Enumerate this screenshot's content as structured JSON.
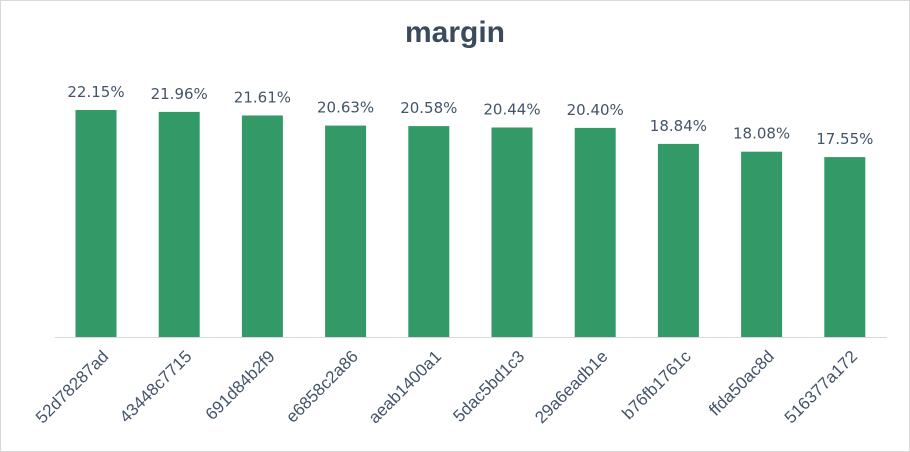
{
  "chart_data": {
    "type": "bar",
    "title": "margin",
    "categories": [
      "52d78287ad",
      "43448c7715",
      "691d84b2f9",
      "e6858c2a86",
      "aeab1400a1",
      "5dac5bd1c3",
      "29a6eadb1e",
      "b76fb1761c",
      "ffda50ac8d",
      "516377a172"
    ],
    "values": [
      22.15,
      21.96,
      21.61,
      20.63,
      20.58,
      20.44,
      20.4,
      18.84,
      18.08,
      17.55
    ],
    "value_labels": [
      "22.15%",
      "21.96%",
      "21.61%",
      "20.63%",
      "20.58%",
      "20.44%",
      "20.40%",
      "18.84%",
      "18.08%",
      "17.55%"
    ],
    "ylim": [
      0,
      22.15
    ],
    "grid": false,
    "legend": "none",
    "xlabel": "",
    "ylabel": ""
  },
  "colors": {
    "bar": "#339966",
    "axis": "#d9d9d9",
    "text": "#44546a",
    "title": "#3b4a5c"
  }
}
